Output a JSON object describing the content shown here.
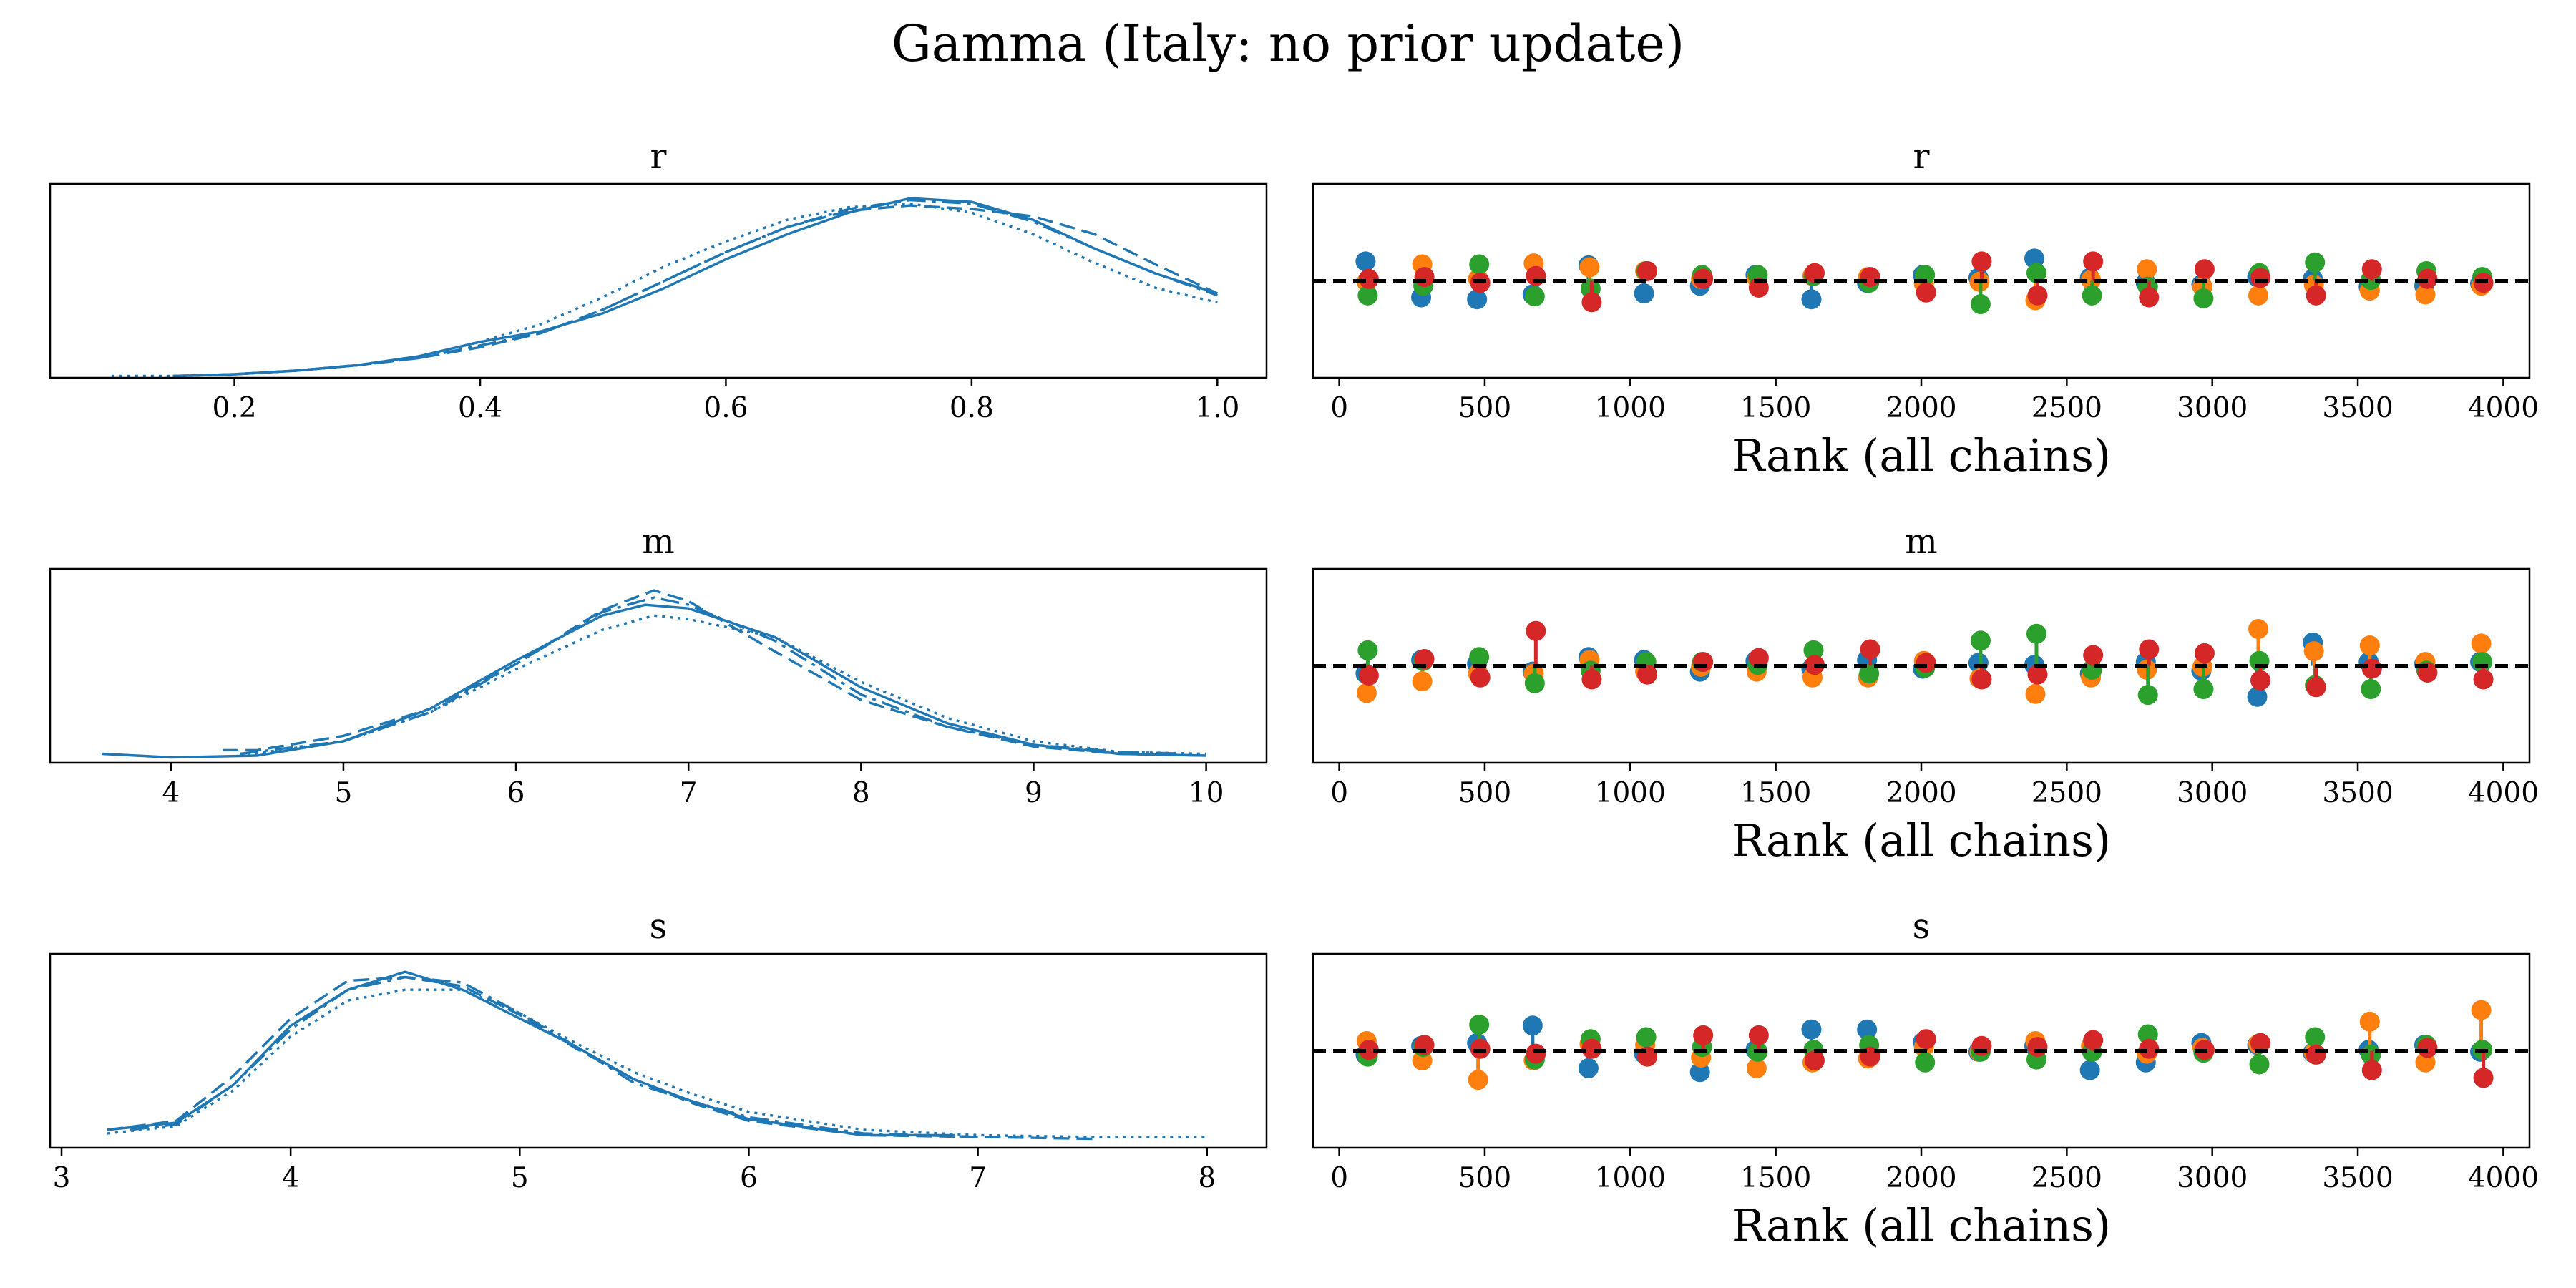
{
  "figure": {
    "title": "Gamma (Italy: no prior update)"
  },
  "colors": {
    "kde": "#1f77b4",
    "chain_colors": [
      "#1f77b4",
      "#ff7f0e",
      "#2ca02c",
      "#d62728"
    ],
    "ref_line": "#000000"
  },
  "chart_data": [
    {
      "type": "line",
      "panel": "kde",
      "title": "r",
      "xlim": [
        0.05,
        1.04
      ],
      "ylim": [
        0,
        1.08
      ],
      "xticks": [
        0.2,
        0.4,
        0.6,
        0.8,
        1.0
      ],
      "xtick_labels": [
        "0.2",
        "0.4",
        "0.6",
        "0.8",
        "1.0"
      ],
      "series": [
        {
          "style": "solid",
          "x": [
            0.15,
            0.2,
            0.25,
            0.3,
            0.35,
            0.4,
            0.45,
            0.5,
            0.55,
            0.6,
            0.65,
            0.7,
            0.75,
            0.8,
            0.85,
            0.9,
            0.95,
            1.0
          ],
          "y": [
            0.01,
            0.02,
            0.04,
            0.07,
            0.12,
            0.2,
            0.26,
            0.36,
            0.5,
            0.66,
            0.8,
            0.92,
            1.0,
            0.98,
            0.88,
            0.72,
            0.58,
            0.47
          ]
        },
        {
          "style": "dashed",
          "x": [
            0.15,
            0.2,
            0.25,
            0.3,
            0.35,
            0.4,
            0.45,
            0.5,
            0.55,
            0.6,
            0.65,
            0.7,
            0.75,
            0.8,
            0.85,
            0.9,
            0.95,
            1.0
          ],
          "y": [
            0.01,
            0.02,
            0.04,
            0.07,
            0.11,
            0.17,
            0.25,
            0.38,
            0.54,
            0.7,
            0.84,
            0.93,
            0.96,
            0.94,
            0.9,
            0.8,
            0.63,
            0.47
          ]
        },
        {
          "style": "dashdot",
          "x": [
            0.2,
            0.25,
            0.3,
            0.35,
            0.4,
            0.45,
            0.5,
            0.55,
            0.6,
            0.65,
            0.7,
            0.75,
            0.8,
            0.85,
            0.9,
            0.95,
            1.0
          ],
          "y": [
            0.02,
            0.04,
            0.07,
            0.11,
            0.18,
            0.25,
            0.38,
            0.54,
            0.7,
            0.84,
            0.94,
            0.99,
            0.97,
            0.87,
            0.72,
            0.58,
            0.46
          ]
        },
        {
          "style": "dotted",
          "x": [
            0.1,
            0.15,
            0.2,
            0.25,
            0.3,
            0.35,
            0.4,
            0.45,
            0.5,
            0.55,
            0.6,
            0.65,
            0.7,
            0.75,
            0.8,
            0.85,
            0.9,
            0.95,
            1.0
          ],
          "y": [
            0.01,
            0.01,
            0.02,
            0.04,
            0.07,
            0.12,
            0.2,
            0.3,
            0.45,
            0.62,
            0.76,
            0.88,
            0.95,
            0.97,
            0.92,
            0.8,
            0.64,
            0.5,
            0.42
          ]
        }
      ]
    },
    {
      "type": "scatter",
      "panel": "rank",
      "title": "r",
      "xlabel": "Rank (all chains)",
      "xlim": [
        -90,
        4090
      ],
      "ylim": [
        -1,
        1
      ],
      "xticks": [
        0,
        500,
        1000,
        1500,
        2000,
        2500,
        3000,
        3500,
        4000
      ],
      "xtick_labels": [
        "0",
        "500",
        "1000",
        "1500",
        "2000",
        "2500",
        "3000",
        "3500",
        "4000"
      ],
      "ref_value": 0,
      "bins": [
        96,
        287,
        479,
        670,
        862,
        1053,
        1245,
        1436,
        1628,
        1819,
        2011,
        2202,
        2394,
        2585,
        2777,
        2968,
        3160,
        3351,
        3543,
        3734,
        3926
      ],
      "chains": [
        [
          0.2,
          -0.17,
          -0.19,
          -0.14,
          0.16,
          -0.13,
          -0.05,
          0.06,
          -0.19,
          -0.02,
          0.06,
          0.03,
          0.23,
          0.03,
          -0.02,
          -0.04,
          0.04,
          0.02,
          -0.06,
          -0.05,
          -0.03
        ],
        [
          -0.01,
          0.17,
          0.02,
          0.18,
          0.14,
          0.1,
          0.02,
          0.03,
          0.05,
          0.04,
          -0.03,
          -0.01,
          -0.2,
          0.01,
          0.12,
          -0.06,
          -0.15,
          -0.04,
          -0.1,
          -0.14,
          -0.05
        ],
        [
          -0.15,
          -0.05,
          0.17,
          -0.16,
          -0.08,
          0.1,
          0.06,
          0.06,
          0.05,
          -0.02,
          0.06,
          -0.24,
          0.08,
          -0.15,
          -0.06,
          -0.18,
          0.08,
          0.19,
          0.01,
          0.1,
          0.04
        ],
        [
          0.02,
          0.04,
          -0.02,
          0.05,
          -0.22,
          0.1,
          0.02,
          -0.07,
          0.08,
          0.04,
          -0.12,
          0.2,
          -0.15,
          0.2,
          -0.17,
          0.12,
          0.03,
          -0.15,
          0.12,
          0.02,
          -0.02
        ]
      ]
    },
    {
      "type": "line",
      "panel": "kde",
      "title": "m",
      "xlim": [
        3.3,
        10.35
      ],
      "ylim": [
        0,
        1.08
      ],
      "xticks": [
        4,
        5,
        6,
        7,
        8,
        9,
        10
      ],
      "xtick_labels": [
        "4",
        "5",
        "6",
        "7",
        "8",
        "9",
        "10"
      ],
      "series": [
        {
          "style": "solid",
          "x": [
            3.6,
            4.0,
            4.5,
            5.0,
            5.5,
            6.0,
            6.5,
            6.75,
            7.0,
            7.5,
            8.0,
            8.5,
            9.0,
            9.5,
            10.0
          ],
          "y": [
            0.05,
            0.03,
            0.04,
            0.12,
            0.3,
            0.57,
            0.82,
            0.88,
            0.86,
            0.7,
            0.42,
            0.22,
            0.1,
            0.05,
            0.04
          ]
        },
        {
          "style": "dashed",
          "x": [
            4.3,
            4.5,
            5.0,
            5.5,
            6.0,
            6.5,
            6.8,
            7.0,
            7.5,
            8.0,
            8.5,
            9.0,
            9.5,
            10.0
          ],
          "y": [
            0.07,
            0.07,
            0.15,
            0.3,
            0.55,
            0.85,
            0.96,
            0.9,
            0.62,
            0.35,
            0.2,
            0.09,
            0.05,
            0.04
          ]
        },
        {
          "style": "dashdot",
          "x": [
            4.4,
            5.0,
            5.5,
            6.0,
            6.5,
            6.8,
            7.0,
            7.5,
            8.0,
            8.5,
            9.0,
            9.5,
            9.9
          ],
          "y": [
            0.05,
            0.12,
            0.28,
            0.55,
            0.84,
            0.92,
            0.88,
            0.68,
            0.38,
            0.2,
            0.1,
            0.06,
            0.05
          ]
        },
        {
          "style": "dotted",
          "x": [
            4.4,
            5.0,
            5.5,
            6.0,
            6.5,
            6.8,
            7.0,
            7.5,
            8.0,
            8.5,
            9.0,
            9.5,
            10.0
          ],
          "y": [
            0.04,
            0.12,
            0.28,
            0.52,
            0.74,
            0.82,
            0.8,
            0.7,
            0.45,
            0.25,
            0.12,
            0.06,
            0.05
          ]
        }
      ]
    },
    {
      "type": "scatter",
      "panel": "rank",
      "title": "m",
      "xlabel": "Rank (all chains)",
      "xlim": [
        -90,
        4090
      ],
      "ylim": [
        -1,
        1
      ],
      "xticks": [
        0,
        500,
        1000,
        1500,
        2000,
        2500,
        3000,
        3500,
        4000
      ],
      "xtick_labels": [
        "0",
        "500",
        "1000",
        "1500",
        "2000",
        "2500",
        "3000",
        "3500",
        "4000"
      ],
      "ref_value": 0,
      "bins": [
        96,
        287,
        479,
        670,
        862,
        1053,
        1245,
        1436,
        1628,
        1819,
        2011,
        2202,
        2394,
        2585,
        2777,
        2968,
        3160,
        3351,
        3543,
        3734,
        3926
      ],
      "chains": [
        [
          -0.08,
          0.06,
          0.02,
          -0.06,
          0.09,
          0.06,
          -0.06,
          0.05,
          -0.03,
          0.06,
          -0.03,
          0.03,
          0.01,
          -0.08,
          0.04,
          -0.05,
          -0.32,
          0.24,
          0.04,
          0.02,
          0.04
        ],
        [
          -0.28,
          -0.16,
          -0.08,
          -0.08,
          0.06,
          -0.06,
          -0.01,
          -0.06,
          -0.12,
          -0.12,
          0.05,
          -0.13,
          -0.29,
          -0.12,
          -0.04,
          -0.01,
          0.38,
          0.15,
          0.21,
          0.04,
          0.23
        ],
        [
          0.16,
          0.05,
          0.09,
          -0.18,
          -0.05,
          0.04,
          0.04,
          0.01,
          0.16,
          -0.08,
          -0.02,
          0.26,
          0.33,
          -0.04,
          -0.3,
          -0.24,
          0.05,
          -0.2,
          -0.24,
          -0.05,
          0.04
        ],
        [
          -0.1,
          0.07,
          -0.12,
          0.36,
          -0.14,
          -0.09,
          0.04,
          0.08,
          0.01,
          0.17,
          0.03,
          -0.14,
          -0.09,
          0.11,
          0.17,
          0.13,
          -0.15,
          -0.22,
          -0.03,
          -0.07,
          -0.14
        ]
      ]
    },
    {
      "type": "line",
      "panel": "kde",
      "title": "s",
      "xlim": [
        2.95,
        8.26
      ],
      "ylim": [
        0,
        1.08
      ],
      "xticks": [
        3,
        4,
        5,
        6,
        7,
        8
      ],
      "xtick_labels": [
        "3",
        "4",
        "5",
        "6",
        "7",
        "8"
      ],
      "series": [
        {
          "style": "solid",
          "x": [
            3.2,
            3.5,
            3.75,
            4.0,
            4.25,
            4.5,
            4.75,
            5.0,
            5.25,
            5.5,
            5.75,
            6.0,
            6.5,
            6.9
          ],
          "y": [
            0.1,
            0.14,
            0.35,
            0.68,
            0.88,
            0.98,
            0.88,
            0.72,
            0.56,
            0.38,
            0.26,
            0.16,
            0.07,
            0.07
          ]
        },
        {
          "style": "dashed",
          "x": [
            3.2,
            3.5,
            3.75,
            4.0,
            4.25,
            4.5,
            4.75,
            5.0,
            5.25,
            5.5,
            5.75,
            6.0,
            6.5,
            7.0,
            7.5
          ],
          "y": [
            0.1,
            0.15,
            0.4,
            0.72,
            0.93,
            0.95,
            0.9,
            0.74,
            0.55,
            0.38,
            0.25,
            0.15,
            0.07,
            0.06,
            0.05
          ]
        },
        {
          "style": "dashdot",
          "x": [
            3.3,
            3.5,
            3.75,
            4.0,
            4.25,
            4.5,
            4.75,
            5.0,
            5.25,
            5.5,
            5.75,
            6.0,
            6.5,
            7.0
          ],
          "y": [
            0.1,
            0.13,
            0.35,
            0.66,
            0.88,
            0.95,
            0.92,
            0.75,
            0.56,
            0.36,
            0.26,
            0.17,
            0.08,
            0.06
          ]
        },
        {
          "style": "dotted",
          "x": [
            3.2,
            3.5,
            3.75,
            4.0,
            4.25,
            4.5,
            4.75,
            5.0,
            5.25,
            5.5,
            5.75,
            6.0,
            6.5,
            7.0,
            7.5,
            8.0
          ],
          "y": [
            0.08,
            0.12,
            0.32,
            0.62,
            0.82,
            0.88,
            0.88,
            0.75,
            0.58,
            0.42,
            0.3,
            0.2,
            0.1,
            0.07,
            0.06,
            0.06
          ]
        }
      ]
    },
    {
      "type": "scatter",
      "panel": "rank",
      "title": "s",
      "xlabel": "Rank (all chains)",
      "xlim": [
        -90,
        4090
      ],
      "ylim": [
        -1,
        1
      ],
      "xticks": [
        0,
        500,
        1000,
        1500,
        2000,
        2500,
        3000,
        3500,
        4000
      ],
      "xtick_labels": [
        "0",
        "500",
        "1000",
        "1500",
        "2000",
        "2500",
        "3000",
        "3500",
        "4000"
      ],
      "ref_value": 0,
      "bins": [
        96,
        287,
        479,
        670,
        862,
        1053,
        1245,
        1436,
        1628,
        1819,
        2011,
        2202,
        2394,
        2585,
        2777,
        2968,
        3160,
        3351,
        3543,
        3734,
        3926
      ],
      "chains": [
        [
          -0.04,
          0.05,
          0.08,
          0.26,
          -0.18,
          -0.03,
          -0.22,
          0.01,
          0.22,
          0.22,
          0.09,
          -0.01,
          0.05,
          -0.2,
          -0.12,
          0.08,
          0.06,
          -0.02,
          0.01,
          0.06,
          -0.01
        ],
        [
          0.1,
          -0.1,
          -0.3,
          -0.1,
          0.07,
          0.06,
          -0.07,
          -0.18,
          -0.12,
          -0.08,
          0.04,
          -0.01,
          0.1,
          0.05,
          -0.03,
          0.03,
          0.07,
          -0.02,
          0.3,
          -0.12,
          0.42
        ],
        [
          -0.06,
          0.04,
          0.27,
          -0.09,
          0.12,
          0.14,
          0.04,
          -0.01,
          0.01,
          0.06,
          -0.12,
          -0.01,
          -0.09,
          -0.01,
          0.17,
          -0.02,
          -0.14,
          0.14,
          -0.04,
          0.06,
          0.01
        ],
        [
          0.01,
          0.06,
          0.02,
          -0.03,
          0.02,
          -0.06,
          0.16,
          0.16,
          -0.1,
          -0.06,
          0.12,
          0.05,
          0.04,
          0.11,
          0.02,
          0.01,
          0.08,
          -0.04,
          -0.2,
          0.03,
          -0.28
        ]
      ]
    }
  ]
}
